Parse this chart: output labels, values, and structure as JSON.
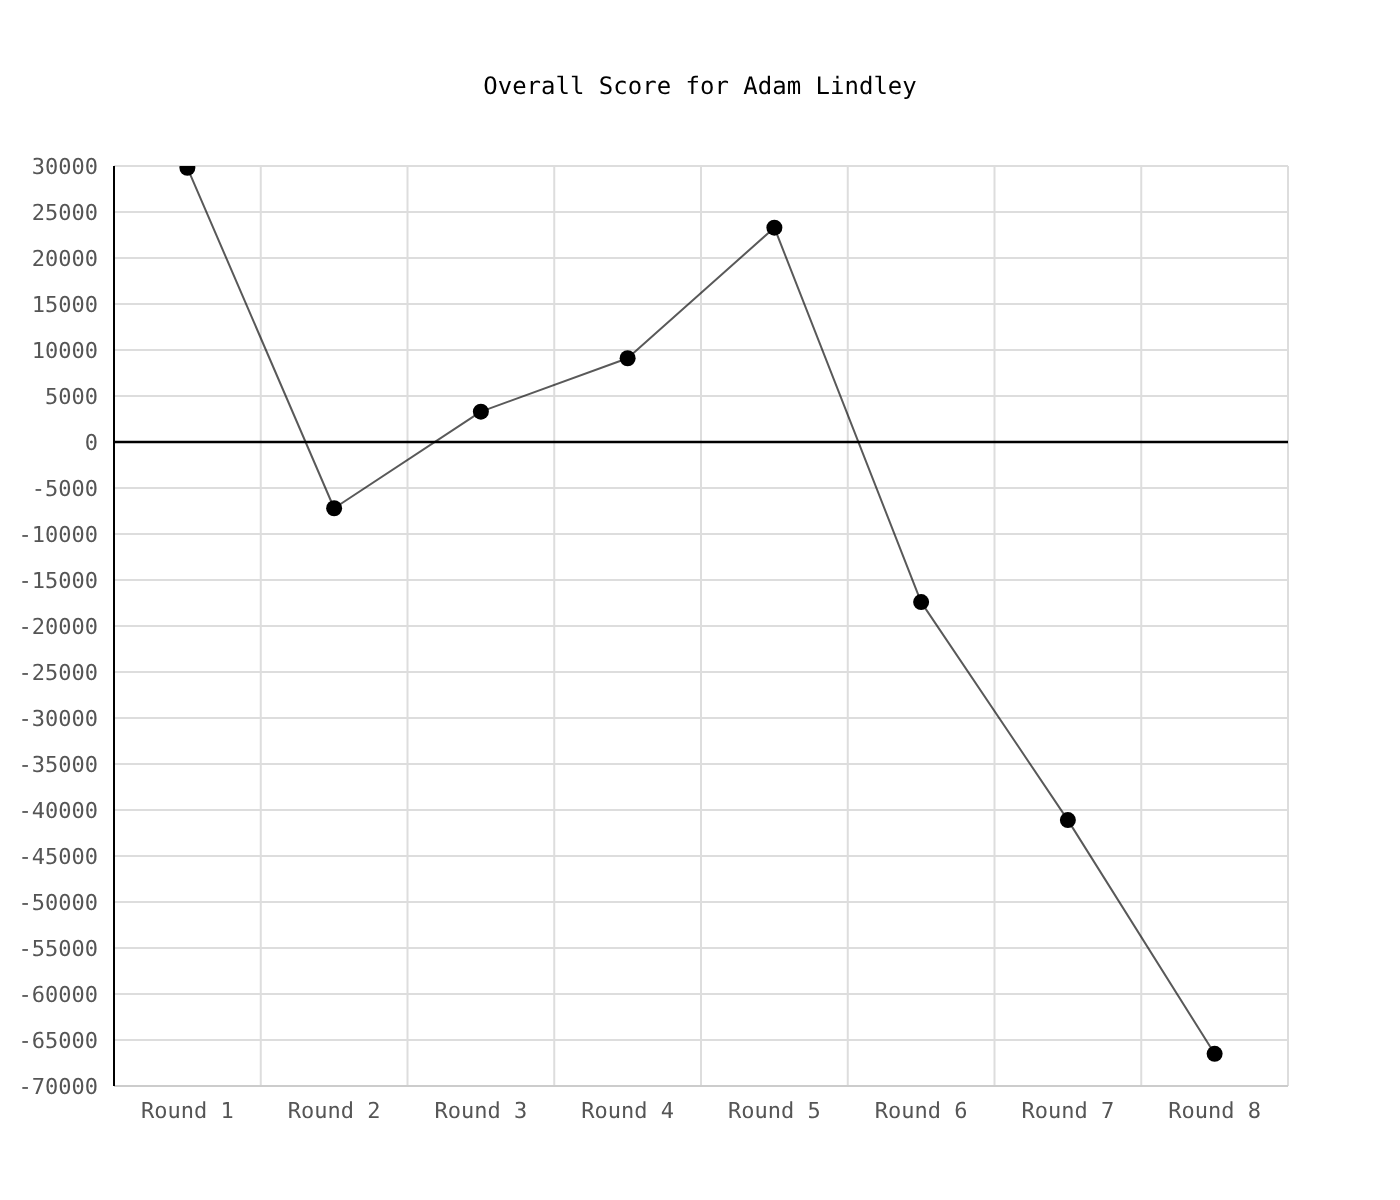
{
  "chart_data": {
    "type": "line",
    "title": "Overall Score for Adam Lindley",
    "categories": [
      "Round 1",
      "Round 2",
      "Round 3",
      "Round 4",
      "Round 5",
      "Round 6",
      "Round 7",
      "Round 8"
    ],
    "series": [
      {
        "color": "#000000",
        "values": [
          29800,
          -7200,
          3300,
          9100,
          23300,
          -17400,
          -41100,
          -66500
        ]
      }
    ],
    "ylim": [
      -70000,
      30000
    ],
    "yticks": [
      -70000,
      -65000,
      -60000,
      -55000,
      -50000,
      -45000,
      -40000,
      -35000,
      -30000,
      -25000,
      -20000,
      -15000,
      -10000,
      -5000,
      0,
      5000,
      10000,
      15000,
      20000,
      25000,
      30000
    ],
    "ref_lines": [
      {
        "axis": "y",
        "value": 0,
        "color": "#000000"
      }
    ],
    "grid": true,
    "marker": "circle",
    "line_style": "solid",
    "legend": false
  }
}
